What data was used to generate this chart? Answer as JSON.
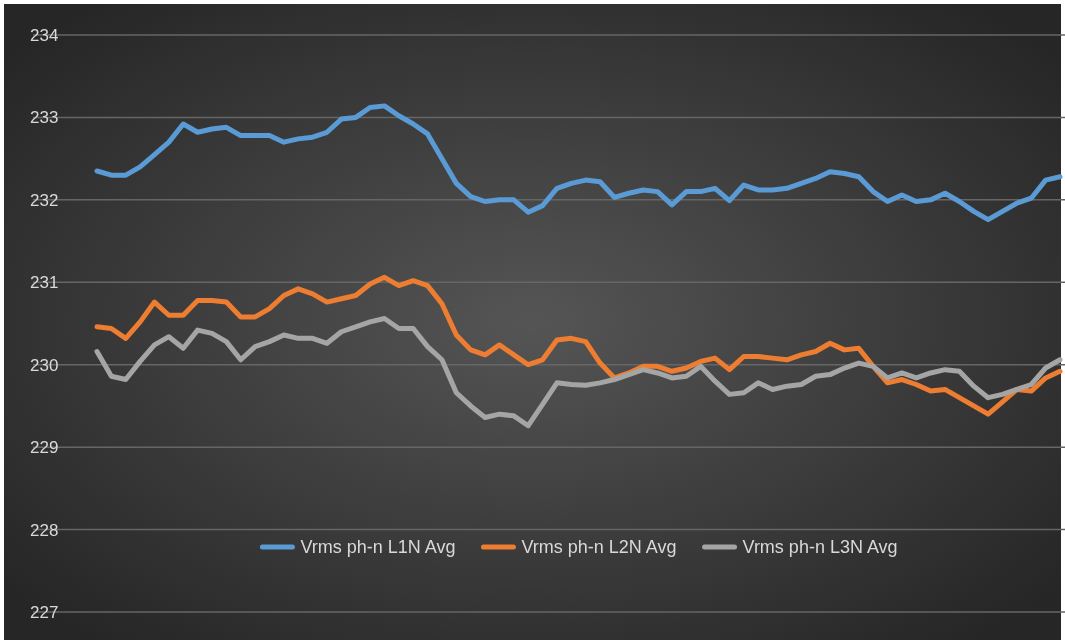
{
  "chart_data": {
    "type": "line",
    "categories": [
      null,
      null,
      null,
      null,
      null,
      null,
      null,
      null,
      null,
      null,
      null,
      null,
      null,
      null,
      null,
      null,
      null,
      null,
      null,
      null,
      null,
      null,
      null,
      null,
      null,
      null,
      null,
      null,
      null,
      null,
      null,
      null,
      null,
      null,
      null,
      null,
      null,
      null,
      null,
      null,
      null,
      null,
      null,
      null,
      null,
      null,
      null,
      null,
      null,
      null,
      null,
      null,
      null,
      null,
      null,
      null,
      null,
      null,
      null,
      null,
      null,
      null,
      null,
      null,
      null,
      null,
      null,
      null
    ],
    "ylim": [
      227,
      234
    ],
    "yticks": [
      227,
      228,
      229,
      230,
      231,
      232,
      233,
      234
    ],
    "grid": "y",
    "legend": "bottom",
    "tick_labels": "y",
    "marker": "none",
    "line_style": "solid",
    "series": [
      {
        "name": "Vrms ph-n L1N Avg",
        "color": "#5b9bd5",
        "values": [
          232.35,
          232.3,
          232.3,
          232.4,
          232.55,
          232.7,
          232.92,
          232.82,
          232.86,
          232.88,
          232.78,
          232.78,
          232.78,
          232.7,
          232.74,
          232.76,
          232.82,
          232.98,
          233.0,
          233.12,
          233.14,
          233.02,
          232.92,
          232.8,
          232.5,
          232.2,
          232.04,
          231.98,
          232.0,
          232.0,
          231.85,
          231.93,
          232.14,
          232.2,
          232.24,
          232.22,
          232.03,
          232.08,
          232.12,
          232.1,
          231.94,
          232.1,
          232.1,
          232.14,
          231.99,
          232.18,
          232.12,
          232.12,
          232.14,
          232.2,
          232.26,
          232.34,
          232.32,
          232.28,
          232.1,
          231.98,
          232.06,
          231.98,
          232.0,
          232.08,
          231.98,
          231.86,
          231.76,
          231.86,
          231.96,
          232.02,
          232.24,
          232.28
        ]
      },
      {
        "name": "Vrms ph-n L2N Avg",
        "color": "#ed7d31",
        "values": [
          230.46,
          230.44,
          230.32,
          230.52,
          230.76,
          230.6,
          230.6,
          230.78,
          230.78,
          230.76,
          230.58,
          230.58,
          230.68,
          230.84,
          230.92,
          230.86,
          230.76,
          230.8,
          230.84,
          230.98,
          231.06,
          230.96,
          231.02,
          230.96,
          230.74,
          230.36,
          230.18,
          230.12,
          230.24,
          230.12,
          230.0,
          230.06,
          230.3,
          230.32,
          230.28,
          230.02,
          229.84,
          229.9,
          229.98,
          229.98,
          229.92,
          229.96,
          230.04,
          230.08,
          229.94,
          230.1,
          230.1,
          230.08,
          230.06,
          230.12,
          230.16,
          230.26,
          230.18,
          230.2,
          229.98,
          229.78,
          229.82,
          229.76,
          229.68,
          229.7,
          229.6,
          229.5,
          229.4,
          229.55,
          229.7,
          229.68,
          229.84,
          229.92
        ]
      },
      {
        "name": "Vrms ph-n L3N Avg",
        "color": "#a5a5a5",
        "values": [
          230.16,
          229.86,
          229.82,
          230.04,
          230.24,
          230.34,
          230.2,
          230.42,
          230.38,
          230.28,
          230.06,
          230.22,
          230.28,
          230.36,
          230.32,
          230.32,
          230.26,
          230.4,
          230.46,
          230.52,
          230.56,
          230.44,
          230.44,
          230.22,
          230.06,
          229.66,
          229.5,
          229.36,
          229.4,
          229.38,
          229.26,
          229.52,
          229.78,
          229.76,
          229.75,
          229.78,
          229.82,
          229.88,
          229.94,
          229.9,
          229.84,
          229.86,
          229.98,
          229.8,
          229.64,
          229.66,
          229.78,
          229.7,
          229.74,
          229.76,
          229.86,
          229.88,
          229.96,
          230.02,
          229.98,
          229.84,
          229.9,
          229.84,
          229.9,
          229.94,
          229.92,
          229.74,
          229.6,
          229.64,
          229.7,
          229.76,
          229.96,
          230.06
        ]
      }
    ]
  }
}
